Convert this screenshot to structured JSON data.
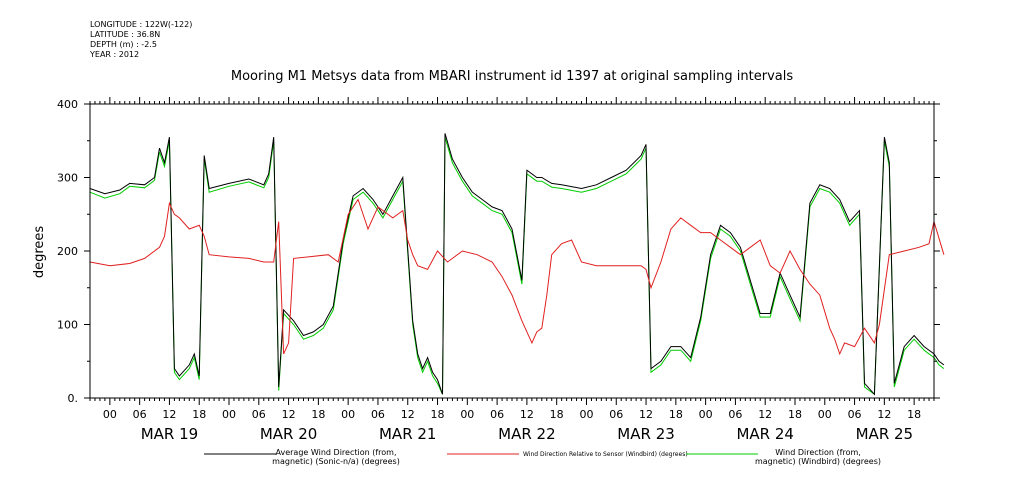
{
  "metadata": {
    "longitude": "LONGITUDE : 122W(-122)",
    "latitude": "LATITUDE : 36.8N",
    "depth": "DEPTH (m) : -2.5",
    "year": "YEAR : 2012"
  },
  "chart_data": {
    "type": "line",
    "title": "Mooring M1 Metsys data from MBARI instrument id 1397 at original sampling intervals",
    "ylabel": "degrees",
    "ylim": [
      0,
      400
    ],
    "xlim": [
      -4,
      166
    ],
    "y_ticks": [
      "0.",
      "100",
      "200",
      "300",
      "400"
    ],
    "hour_ticks": [
      {
        "h": 0,
        "label": "00"
      },
      {
        "h": 6,
        "label": "06"
      },
      {
        "h": 12,
        "label": "12"
      },
      {
        "h": 18,
        "label": "18"
      },
      {
        "h": 24,
        "label": "00"
      },
      {
        "h": 30,
        "label": "06"
      },
      {
        "h": 36,
        "label": "12"
      },
      {
        "h": 42,
        "label": "18"
      },
      {
        "h": 48,
        "label": "00"
      },
      {
        "h": 54,
        "label": "06"
      },
      {
        "h": 60,
        "label": "12"
      },
      {
        "h": 66,
        "label": "18"
      },
      {
        "h": 72,
        "label": "00"
      },
      {
        "h": 78,
        "label": "06"
      },
      {
        "h": 84,
        "label": "12"
      },
      {
        "h": 90,
        "label": "18"
      },
      {
        "h": 96,
        "label": "00"
      },
      {
        "h": 102,
        "label": "06"
      },
      {
        "h": 108,
        "label": "12"
      },
      {
        "h": 114,
        "label": "18"
      },
      {
        "h": 120,
        "label": "00"
      },
      {
        "h": 126,
        "label": "06"
      },
      {
        "h": 132,
        "label": "12"
      },
      {
        "h": 138,
        "label": "18"
      },
      {
        "h": 144,
        "label": "00"
      },
      {
        "h": 150,
        "label": "06"
      },
      {
        "h": 156,
        "label": "12"
      },
      {
        "h": 162,
        "label": "18"
      }
    ],
    "day_labels": [
      {
        "h": 12,
        "label": "MAR 19"
      },
      {
        "h": 36,
        "label": "MAR 20"
      },
      {
        "h": 60,
        "label": "MAR 21"
      },
      {
        "h": 84,
        "label": "MAR 22"
      },
      {
        "h": 108,
        "label": "MAR 23"
      },
      {
        "h": 132,
        "label": "MAR 24"
      },
      {
        "h": 156,
        "label": "MAR 25"
      }
    ],
    "legend": [
      {
        "color": "#000000",
        "line1": "Average Wind Direction (from,",
        "line2": "magnetic) (Sonic-n/a) (degrees)",
        "size": "big"
      },
      {
        "color": "#e02020",
        "line1": "Wind Direction Relative to Sensor (Windbird) (degrees)",
        "line2": "",
        "size": "small"
      },
      {
        "color": "#00cc00",
        "line1": "Wind Direction (from,",
        "line2": "magnetic) (Windbird) (degrees)",
        "size": "big"
      }
    ],
    "series": [
      {
        "name": "Average Wind Direction (from, magnetic) (Sonic-n/a) (degrees)",
        "color": "#000000",
        "points": [
          [
            -4,
            285
          ],
          [
            -1,
            278
          ],
          [
            2,
            283
          ],
          [
            4,
            292
          ],
          [
            7,
            290
          ],
          [
            9,
            300
          ],
          [
            10,
            340
          ],
          [
            11,
            320
          ],
          [
            12,
            355
          ],
          [
            13,
            40
          ],
          [
            14,
            30
          ],
          [
            16,
            45
          ],
          [
            17,
            60
          ],
          [
            18,
            30
          ],
          [
            19,
            330
          ],
          [
            20,
            285
          ],
          [
            24,
            292
          ],
          [
            28,
            298
          ],
          [
            31,
            290
          ],
          [
            32,
            305
          ],
          [
            33,
            355
          ],
          [
            34,
            15
          ],
          [
            35,
            120
          ],
          [
            37,
            105
          ],
          [
            39,
            85
          ],
          [
            41,
            90
          ],
          [
            43,
            100
          ],
          [
            45,
            125
          ],
          [
            47,
            215
          ],
          [
            49,
            275
          ],
          [
            51,
            285
          ],
          [
            53,
            270
          ],
          [
            55,
            250
          ],
          [
            57,
            275
          ],
          [
            59,
            300
          ],
          [
            61,
            105
          ],
          [
            62,
            60
          ],
          [
            63,
            40
          ],
          [
            64,
            55
          ],
          [
            65,
            35
          ],
          [
            66,
            25
          ],
          [
            67,
            5
          ],
          [
            67.5,
            360
          ],
          [
            69,
            325
          ],
          [
            71,
            300
          ],
          [
            73,
            280
          ],
          [
            75,
            270
          ],
          [
            77,
            260
          ],
          [
            79,
            255
          ],
          [
            81,
            230
          ],
          [
            83,
            160
          ],
          [
            84,
            310
          ],
          [
            86,
            300
          ],
          [
            87,
            300
          ],
          [
            89,
            292
          ],
          [
            91,
            290
          ],
          [
            95,
            285
          ],
          [
            98,
            290
          ],
          [
            101,
            300
          ],
          [
            104,
            310
          ],
          [
            107,
            330
          ],
          [
            108,
            345
          ],
          [
            109,
            40
          ],
          [
            111,
            50
          ],
          [
            113,
            70
          ],
          [
            115,
            70
          ],
          [
            117,
            55
          ],
          [
            119,
            110
          ],
          [
            121,
            195
          ],
          [
            123,
            235
          ],
          [
            125,
            225
          ],
          [
            127,
            205
          ],
          [
            129,
            160
          ],
          [
            131,
            115
          ],
          [
            133,
            115
          ],
          [
            135,
            170
          ],
          [
            137,
            140
          ],
          [
            139,
            110
          ],
          [
            141,
            265
          ],
          [
            143,
            290
          ],
          [
            145,
            285
          ],
          [
            147,
            270
          ],
          [
            149,
            240
          ],
          [
            151,
            255
          ],
          [
            152,
            20
          ],
          [
            154,
            5
          ],
          [
            156,
            355
          ],
          [
            157,
            320
          ],
          [
            158,
            20
          ],
          [
            160,
            70
          ],
          [
            162,
            85
          ],
          [
            164,
            70
          ],
          [
            166,
            60
          ],
          [
            167,
            50
          ],
          [
            168,
            45
          ]
        ]
      },
      {
        "name": "Wind Direction Relative to Sensor (Windbird) (degrees)",
        "color": "#e02020",
        "points": [
          [
            -4,
            185
          ],
          [
            0,
            180
          ],
          [
            4,
            183
          ],
          [
            7,
            190
          ],
          [
            10,
            205
          ],
          [
            11,
            220
          ],
          [
            12,
            265
          ],
          [
            13,
            250
          ],
          [
            14,
            245
          ],
          [
            16,
            230
          ],
          [
            18,
            235
          ],
          [
            19,
            220
          ],
          [
            20,
            195
          ],
          [
            24,
            192
          ],
          [
            28,
            190
          ],
          [
            31,
            185
          ],
          [
            33,
            185
          ],
          [
            34,
            240
          ],
          [
            35,
            60
          ],
          [
            36,
            75
          ],
          [
            37,
            190
          ],
          [
            40,
            192
          ],
          [
            44,
            195
          ],
          [
            46,
            185
          ],
          [
            48,
            250
          ],
          [
            50,
            270
          ],
          [
            52,
            230
          ],
          [
            54,
            260
          ],
          [
            57,
            245
          ],
          [
            59,
            255
          ],
          [
            60,
            215
          ],
          [
            61,
            195
          ],
          [
            62,
            180
          ],
          [
            64,
            175
          ],
          [
            66,
            200
          ],
          [
            68,
            185
          ],
          [
            71,
            200
          ],
          [
            74,
            195
          ],
          [
            77,
            185
          ],
          [
            79,
            165
          ],
          [
            81,
            140
          ],
          [
            83,
            105
          ],
          [
            84,
            90
          ],
          [
            85,
            75
          ],
          [
            86,
            90
          ],
          [
            87,
            95
          ],
          [
            88,
            140
          ],
          [
            89,
            195
          ],
          [
            91,
            210
          ],
          [
            93,
            215
          ],
          [
            95,
            185
          ],
          [
            98,
            180
          ],
          [
            101,
            180
          ],
          [
            104,
            180
          ],
          [
            107,
            180
          ],
          [
            108,
            175
          ],
          [
            109,
            150
          ],
          [
            111,
            185
          ],
          [
            113,
            230
          ],
          [
            115,
            245
          ],
          [
            117,
            235
          ],
          [
            119,
            225
          ],
          [
            121,
            225
          ],
          [
            123,
            215
          ],
          [
            125,
            205
          ],
          [
            127,
            195
          ],
          [
            129,
            205
          ],
          [
            131,
            215
          ],
          [
            133,
            180
          ],
          [
            135,
            170
          ],
          [
            137,
            200
          ],
          [
            139,
            175
          ],
          [
            141,
            155
          ],
          [
            143,
            140
          ],
          [
            145,
            95
          ],
          [
            146,
            80
          ],
          [
            147,
            60
          ],
          [
            148,
            75
          ],
          [
            150,
            70
          ],
          [
            152,
            95
          ],
          [
            154,
            75
          ],
          [
            155,
            100
          ],
          [
            157,
            195
          ],
          [
            160,
            200
          ],
          [
            163,
            205
          ],
          [
            165,
            210
          ],
          [
            166,
            240
          ],
          [
            168,
            195
          ]
        ]
      },
      {
        "name": "Wind Direction (from, magnetic) (Windbird) (degrees)",
        "color": "#00cc00",
        "points": [
          [
            -4,
            280
          ],
          [
            -1,
            272
          ],
          [
            2,
            278
          ],
          [
            4,
            288
          ],
          [
            7,
            286
          ],
          [
            9,
            296
          ],
          [
            10,
            335
          ],
          [
            11,
            315
          ],
          [
            12,
            350
          ],
          [
            13,
            35
          ],
          [
            14,
            25
          ],
          [
            16,
            40
          ],
          [
            17,
            55
          ],
          [
            18,
            25
          ],
          [
            19,
            325
          ],
          [
            20,
            280
          ],
          [
            24,
            288
          ],
          [
            28,
            294
          ],
          [
            31,
            286
          ],
          [
            32,
            300
          ],
          [
            33,
            350
          ],
          [
            34,
            10
          ],
          [
            35,
            115
          ],
          [
            37,
            100
          ],
          [
            39,
            80
          ],
          [
            41,
            85
          ],
          [
            43,
            95
          ],
          [
            45,
            120
          ],
          [
            47,
            210
          ],
          [
            49,
            270
          ],
          [
            51,
            280
          ],
          [
            53,
            265
          ],
          [
            55,
            245
          ],
          [
            57,
            270
          ],
          [
            59,
            295
          ],
          [
            61,
            100
          ],
          [
            62,
            55
          ],
          [
            63,
            35
          ],
          [
            64,
            50
          ],
          [
            65,
            30
          ],
          [
            66,
            20
          ],
          [
            67,
            5
          ],
          [
            67.5,
            355
          ],
          [
            69,
            320
          ],
          [
            71,
            295
          ],
          [
            73,
            275
          ],
          [
            75,
            265
          ],
          [
            77,
            255
          ],
          [
            79,
            250
          ],
          [
            81,
            225
          ],
          [
            83,
            155
          ],
          [
            84,
            305
          ],
          [
            86,
            295
          ],
          [
            87,
            295
          ],
          [
            89,
            287
          ],
          [
            91,
            285
          ],
          [
            95,
            280
          ],
          [
            98,
            285
          ],
          [
            101,
            295
          ],
          [
            104,
            305
          ],
          [
            107,
            325
          ],
          [
            108,
            340
          ],
          [
            109,
            35
          ],
          [
            111,
            45
          ],
          [
            113,
            65
          ],
          [
            115,
            65
          ],
          [
            117,
            50
          ],
          [
            119,
            105
          ],
          [
            121,
            190
          ],
          [
            123,
            230
          ],
          [
            125,
            220
          ],
          [
            127,
            200
          ],
          [
            129,
            155
          ],
          [
            131,
            110
          ],
          [
            133,
            110
          ],
          [
            135,
            165
          ],
          [
            137,
            135
          ],
          [
            139,
            105
          ],
          [
            141,
            260
          ],
          [
            143,
            285
          ],
          [
            145,
            280
          ],
          [
            147,
            265
          ],
          [
            149,
            235
          ],
          [
            151,
            250
          ],
          [
            152,
            15
          ],
          [
            154,
            5
          ],
          [
            156,
            350
          ],
          [
            157,
            315
          ],
          [
            158,
            15
          ],
          [
            160,
            65
          ],
          [
            162,
            80
          ],
          [
            164,
            65
          ],
          [
            166,
            55
          ],
          [
            167,
            45
          ],
          [
            168,
            40
          ]
        ]
      }
    ]
  }
}
